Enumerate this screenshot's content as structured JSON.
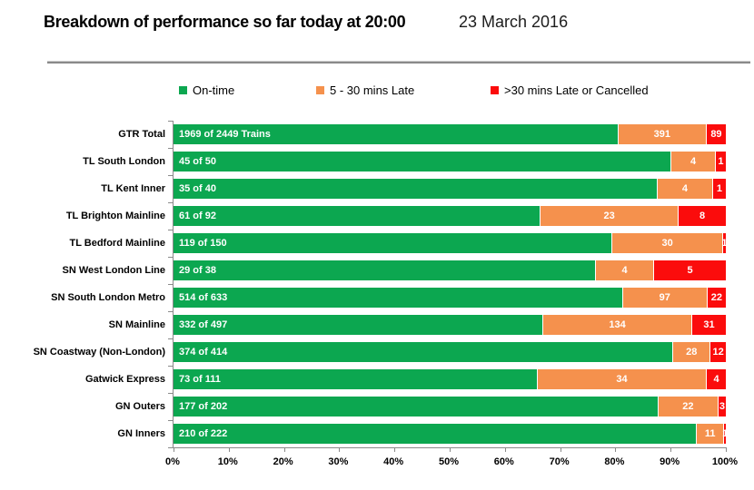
{
  "header": {
    "title": "Breakdown of performance so far today at 20:00",
    "date": "23 March 2016"
  },
  "legend": [
    {
      "label": "On-time",
      "color": "#0CA750"
    },
    {
      "label": "5 - 30 mins Late",
      "color": "#F5914D"
    },
    {
      "label": ">30 mins Late or Cancelled",
      "color": "#FB0C0C"
    }
  ],
  "chart_data": {
    "type": "bar",
    "orientation": "horizontal",
    "stacked": "100%",
    "title": "Breakdown of performance so far today at 20:00",
    "subtitle": "23 March 2016",
    "legend_position": "top",
    "grid": false,
    "xlim": [
      0,
      100
    ],
    "x_ticks": [
      "0%",
      "10%",
      "20%",
      "30%",
      "40%",
      "50%",
      "60%",
      "70%",
      "80%",
      "90%",
      "100%"
    ],
    "categories": [
      "GTR Total",
      "TL South London",
      "TL Kent Inner",
      "TL Brighton Mainline",
      "TL Bedford Mainline",
      "SN West London Line",
      "SN South London Metro",
      "SN Mainline",
      "SN Coastway (Non-London)",
      "Gatwick Express",
      "GN Outers",
      "GN Inners"
    ],
    "totals": [
      2449,
      50,
      40,
      92,
      150,
      38,
      633,
      497,
      414,
      111,
      202,
      222
    ],
    "series": [
      {
        "name": "On-time",
        "color": "#0CA750",
        "values": [
          1969,
          45,
          35,
          61,
          119,
          29,
          514,
          332,
          374,
          73,
          177,
          210
        ],
        "bar_labels": [
          "1969 of 2449 Trains",
          "45 of 50",
          "35 of 40",
          "61 of 92",
          "119 of 150",
          "29 of 38",
          "514 of 633",
          "332 of 497",
          "374 of 414",
          "73 of 111",
          "177 of 202",
          "210 of 222"
        ]
      },
      {
        "name": "5 - 30 mins Late",
        "color": "#F5914D",
        "values": [
          391,
          4,
          4,
          23,
          30,
          4,
          97,
          134,
          28,
          34,
          22,
          11
        ],
        "bar_labels": [
          "391",
          "4",
          "4",
          "23",
          "30",
          "4",
          "97",
          "134",
          "28",
          "34",
          "22",
          "11"
        ]
      },
      {
        "name": ">30 mins Late or Cancelled",
        "color": "#FB0C0C",
        "values": [
          89,
          1,
          1,
          8,
          1,
          5,
          22,
          31,
          12,
          4,
          3,
          1
        ],
        "bar_labels": [
          "89",
          "1",
          "1",
          "8",
          "1",
          "5",
          "22",
          "31",
          "12",
          "4",
          "3",
          "1"
        ]
      }
    ]
  }
}
